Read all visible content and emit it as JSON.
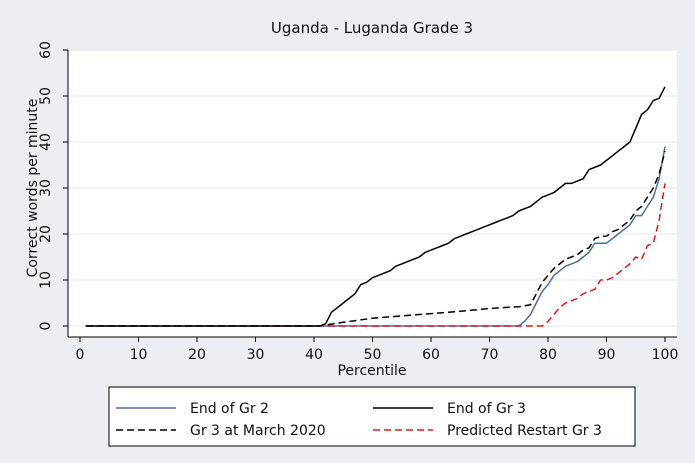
{
  "chart_data": {
    "type": "line",
    "title": "Uganda - Luganda Grade 3",
    "xlabel": "Percentile",
    "ylabel": "Correct words per minute",
    "xlim": [
      0,
      100
    ],
    "ylim": [
      0,
      60
    ],
    "xticks": [
      0,
      10,
      20,
      30,
      40,
      50,
      60,
      70,
      80,
      90,
      100
    ],
    "yticks": [
      0,
      10,
      20,
      30,
      40,
      50,
      60
    ],
    "grid": "horizontal",
    "legend_position": "bottom",
    "series": [
      {
        "name": "End of Gr 2",
        "color": "#4a6f9c",
        "dash": "solid",
        "points": [
          [
            1,
            0
          ],
          [
            75,
            0
          ],
          [
            76,
            1
          ],
          [
            77,
            2.5
          ],
          [
            78,
            5
          ],
          [
            79,
            7.5
          ],
          [
            80,
            9
          ],
          [
            81,
            11
          ],
          [
            82,
            12
          ],
          [
            83,
            13
          ],
          [
            84,
            13.5
          ],
          [
            85,
            14
          ],
          [
            86,
            15
          ],
          [
            87,
            16
          ],
          [
            88,
            18
          ],
          [
            89,
            18
          ],
          [
            90,
            18
          ],
          [
            91,
            19
          ],
          [
            92,
            20
          ],
          [
            93,
            21
          ],
          [
            94,
            22
          ],
          [
            95,
            24
          ],
          [
            96,
            24
          ],
          [
            97,
            26
          ],
          [
            98,
            28
          ],
          [
            99,
            32
          ],
          [
            100,
            39
          ]
        ]
      },
      {
        "name": "End of Gr 3",
        "color": "#000000",
        "dash": "solid",
        "points": [
          [
            1,
            0
          ],
          [
            41,
            0
          ],
          [
            42,
            0.5
          ],
          [
            43,
            3
          ],
          [
            44,
            4
          ],
          [
            45,
            5
          ],
          [
            46,
            6
          ],
          [
            47,
            7
          ],
          [
            48,
            9
          ],
          [
            49,
            9.5
          ],
          [
            50,
            10.5
          ],
          [
            51,
            11
          ],
          [
            52,
            11.5
          ],
          [
            53,
            12
          ],
          [
            54,
            13
          ],
          [
            55,
            13.5
          ],
          [
            56,
            14
          ],
          [
            57,
            14.5
          ],
          [
            58,
            15
          ],
          [
            59,
            16
          ],
          [
            60,
            16.5
          ],
          [
            61,
            17
          ],
          [
            62,
            17.5
          ],
          [
            63,
            18
          ],
          [
            64,
            19
          ],
          [
            65,
            19.5
          ],
          [
            66,
            20
          ],
          [
            67,
            20.5
          ],
          [
            68,
            21
          ],
          [
            69,
            21.5
          ],
          [
            70,
            22
          ],
          [
            71,
            22.5
          ],
          [
            72,
            23
          ],
          [
            73,
            23.5
          ],
          [
            74,
            24
          ],
          [
            75,
            25
          ],
          [
            76,
            25.5
          ],
          [
            77,
            26
          ],
          [
            78,
            27
          ],
          [
            79,
            28
          ],
          [
            80,
            28.5
          ],
          [
            81,
            29
          ],
          [
            82,
            30
          ],
          [
            83,
            31
          ],
          [
            84,
            31
          ],
          [
            85,
            31.5
          ],
          [
            86,
            32
          ],
          [
            87,
            34
          ],
          [
            88,
            34.5
          ],
          [
            89,
            35
          ],
          [
            90,
            36
          ],
          [
            91,
            37
          ],
          [
            92,
            38
          ],
          [
            93,
            39
          ],
          [
            94,
            40
          ],
          [
            95,
            43
          ],
          [
            96,
            46
          ],
          [
            97,
            47
          ],
          [
            98,
            49
          ],
          [
            99,
            49.5
          ],
          [
            100,
            52
          ]
        ]
      },
      {
        "name": "Gr 3 at March 2020",
        "color": "#000000",
        "dash": "dashed",
        "points": [
          [
            1,
            0
          ],
          [
            41,
            0
          ],
          [
            45,
            0.8
          ],
          [
            50,
            1.7
          ],
          [
            55,
            2.2
          ],
          [
            60,
            2.7
          ],
          [
            65,
            3.2
          ],
          [
            70,
            3.8
          ],
          [
            75,
            4.2
          ],
          [
            77,
            4.6
          ],
          [
            78,
            7
          ],
          [
            79,
            9.5
          ],
          [
            80,
            11
          ],
          [
            81,
            12.5
          ],
          [
            82,
            13.5
          ],
          [
            83,
            14.5
          ],
          [
            84,
            15
          ],
          [
            85,
            15.5
          ],
          [
            86,
            16.5
          ],
          [
            87,
            17
          ],
          [
            88,
            19
          ],
          [
            89,
            19.5
          ],
          [
            90,
            19.5
          ],
          [
            91,
            20.5
          ],
          [
            92,
            21
          ],
          [
            93,
            22
          ],
          [
            94,
            23
          ],
          [
            95,
            25
          ],
          [
            96,
            26
          ],
          [
            97,
            28
          ],
          [
            98,
            30
          ],
          [
            99,
            33
          ],
          [
            100,
            38
          ]
        ]
      },
      {
        "name": "Predicted Restart Gr 3",
        "color": "#e31a1c",
        "dash": "dashed",
        "points": [
          [
            1,
            0
          ],
          [
            79,
            0
          ],
          [
            80,
            1
          ],
          [
            81,
            2.5
          ],
          [
            82,
            4
          ],
          [
            83,
            5
          ],
          [
            84,
            5.5
          ],
          [
            85,
            6
          ],
          [
            86,
            7
          ],
          [
            87,
            7.5
          ],
          [
            88,
            8
          ],
          [
            89,
            10
          ],
          [
            90,
            10
          ],
          [
            91,
            10.5
          ],
          [
            92,
            11.5
          ],
          [
            93,
            12.5
          ],
          [
            94,
            13.5
          ],
          [
            95,
            15
          ],
          [
            96,
            14.5
          ],
          [
            97,
            17.5
          ],
          [
            98,
            18
          ],
          [
            99,
            23
          ],
          [
            100,
            31
          ]
        ]
      }
    ]
  }
}
